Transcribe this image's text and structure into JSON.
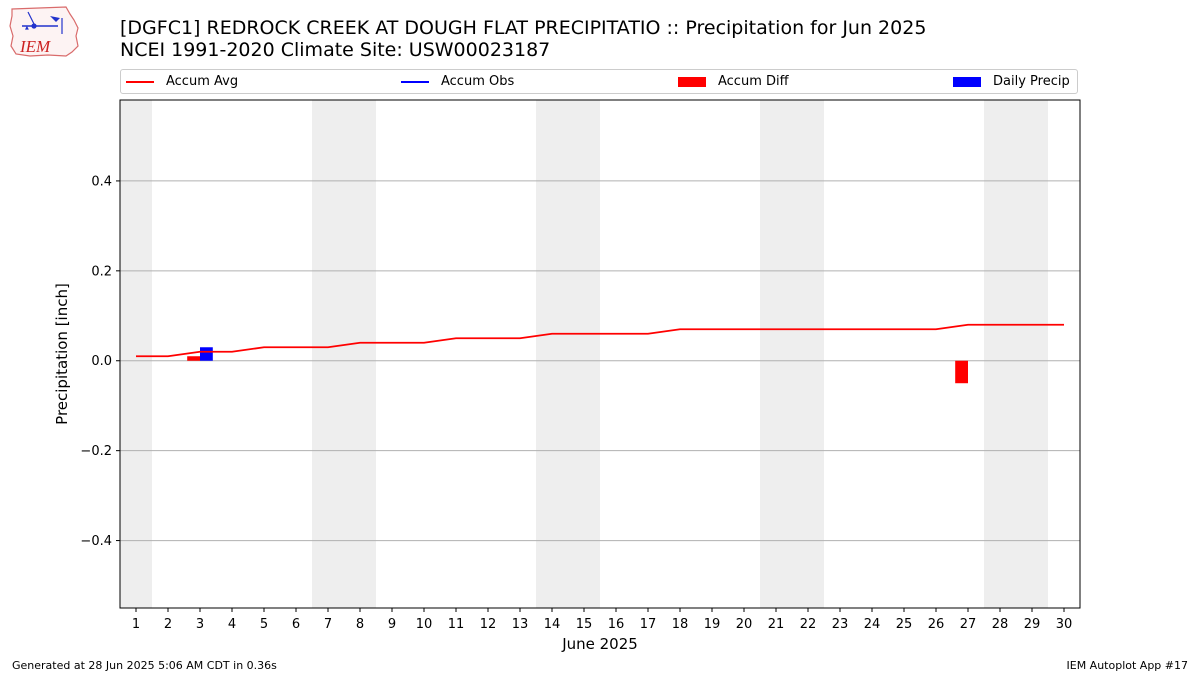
{
  "header": {
    "title_line1": "[DGFC1] REDROCK CREEK AT DOUGH FLAT PRECIPITATIO :: Precipitation for Jun 2025",
    "title_line2": "NCEI 1991-2020 Climate Site: USW00023187",
    "logo_text": "IEM"
  },
  "legend": {
    "items": [
      {
        "label": "Accum Avg",
        "kind": "line",
        "color": "#ff0000"
      },
      {
        "label": "Accum Obs",
        "kind": "line",
        "color": "#0000ff"
      },
      {
        "label": "Accum Diff",
        "kind": "bar",
        "color": "#ff0000"
      },
      {
        "label": "Daily Precip",
        "kind": "bar",
        "color": "#0000ff"
      }
    ]
  },
  "footer": {
    "left": "Generated at 28 Jun 2025 5:06 AM CDT in 0.36s",
    "right": "IEM Autoplot App #17"
  },
  "chart_data": {
    "type": "line",
    "title": "[DGFC1] REDROCK CREEK AT DOUGH FLAT PRECIPITATIO :: Precipitation for Jun 2025",
    "subtitle": "NCEI 1991-2020 Climate Site: USW00023187",
    "xlabel": "June 2025",
    "ylabel": "Precipitation [inch]",
    "x": [
      1,
      2,
      3,
      4,
      5,
      6,
      7,
      8,
      9,
      10,
      11,
      12,
      13,
      14,
      15,
      16,
      17,
      18,
      19,
      20,
      21,
      22,
      23,
      24,
      25,
      26,
      27,
      28,
      29,
      30
    ],
    "xlim": [
      0.5,
      30.5
    ],
    "ylim": [
      -0.55,
      0.58
    ],
    "yticks": [
      0.4,
      0.2,
      0.0,
      -0.2,
      -0.4
    ],
    "ytick_labels": [
      "0.4",
      "0.2",
      "0.0",
      "−0.2",
      "−0.4"
    ],
    "grid": "y",
    "legend_position": "top",
    "weekend_days": [
      1,
      7,
      8,
      14,
      15,
      21,
      22,
      28,
      29
    ],
    "shade_color": "#eeeeee",
    "series": [
      {
        "name": "Accum Avg",
        "type": "line",
        "color": "#ff0000",
        "values": [
          0.01,
          0.01,
          0.02,
          0.02,
          0.03,
          0.03,
          0.03,
          0.04,
          0.04,
          0.04,
          0.05,
          0.05,
          0.05,
          0.06,
          0.06,
          0.06,
          0.06,
          0.07,
          0.07,
          0.07,
          0.07,
          0.07,
          0.07,
          0.07,
          0.07,
          0.07,
          0.08,
          0.08,
          0.08,
          0.08
        ]
      },
      {
        "name": "Accum Diff",
        "type": "bar",
        "color": "#ff0000",
        "offset": -0.2,
        "points": [
          {
            "day": 3,
            "value": 0.01
          },
          {
            "day": 27,
            "value": -0.05
          }
        ]
      },
      {
        "name": "Daily Precip",
        "type": "bar",
        "color": "#0000ff",
        "offset": 0.2,
        "points": [
          {
            "day": 3,
            "value": 0.03
          }
        ]
      }
    ]
  }
}
